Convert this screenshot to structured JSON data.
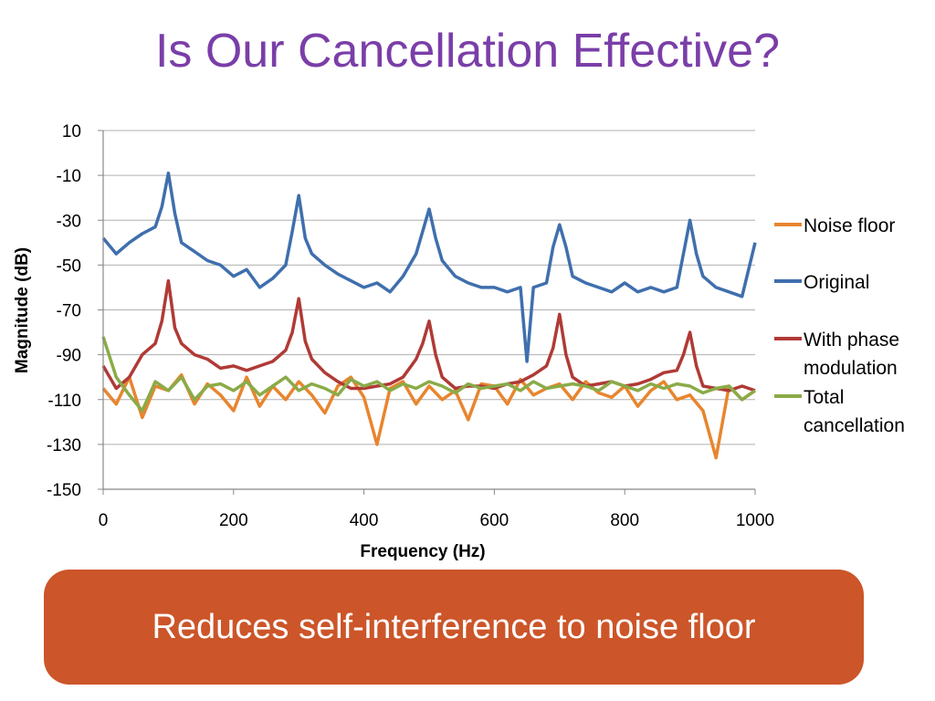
{
  "slide": {
    "title": "Is Our Cancellation Effective?",
    "callout": "Reduces self-interference to noise floor"
  },
  "colors": {
    "title": "#7a3ea8",
    "callout_bg": "#cc5529",
    "grid": "#b0b0b0"
  },
  "chart_data": {
    "type": "line",
    "title": "",
    "xlabel": "Frequency (Hz)",
    "ylabel": "Magnitude (dB)",
    "xlim": [
      0,
      1000
    ],
    "ylim": [
      -150,
      10
    ],
    "xticks": [
      0,
      200,
      400,
      600,
      800,
      1000
    ],
    "yticks": [
      10,
      -10,
      -30,
      -50,
      -70,
      -90,
      -110,
      -130,
      -150
    ],
    "grid": "horizontal",
    "legend_position": "right",
    "series": [
      {
        "name": "Noise floor",
        "color": "#e8852e",
        "x": [
          0,
          20,
          40,
          60,
          80,
          100,
          120,
          140,
          160,
          180,
          200,
          220,
          240,
          260,
          280,
          300,
          320,
          340,
          360,
          380,
          400,
          420,
          440,
          460,
          480,
          500,
          520,
          540,
          560,
          580,
          600,
          620,
          640,
          660,
          680,
          700,
          720,
          740,
          760,
          780,
          800,
          820,
          840,
          860,
          880,
          900,
          920,
          940,
          960,
          980,
          1000
        ],
        "y": [
          -105,
          -112,
          -100,
          -118,
          -104,
          -106,
          -99,
          -112,
          -103,
          -108,
          -115,
          -100,
          -113,
          -104,
          -110,
          -102,
          -108,
          -116,
          -104,
          -100,
          -109,
          -130,
          -105,
          -102,
          -112,
          -104,
          -110,
          -106,
          -119,
          -103,
          -104,
          -112,
          -101,
          -108,
          -105,
          -103,
          -110,
          -102,
          -107,
          -109,
          -104,
          -113,
          -106,
          -102,
          -110,
          -108,
          -115,
          -136,
          -104,
          -110,
          -106
        ]
      },
      {
        "name": "Original",
        "color": "#3f6fad",
        "x": [
          0,
          20,
          40,
          60,
          80,
          90,
          100,
          110,
          120,
          140,
          160,
          180,
          200,
          220,
          240,
          260,
          280,
          290,
          300,
          310,
          320,
          340,
          360,
          380,
          400,
          420,
          440,
          460,
          480,
          490,
          500,
          510,
          520,
          540,
          560,
          580,
          600,
          620,
          640,
          650,
          660,
          680,
          690,
          700,
          710,
          720,
          740,
          760,
          780,
          800,
          820,
          840,
          860,
          880,
          890,
          900,
          910,
          920,
          940,
          960,
          980,
          1000
        ],
        "y": [
          -38,
          -45,
          -40,
          -36,
          -33,
          -24,
          -9,
          -27,
          -40,
          -44,
          -48,
          -50,
          -55,
          -52,
          -60,
          -56,
          -50,
          -35,
          -19,
          -38,
          -45,
          -50,
          -54,
          -57,
          -60,
          -58,
          -62,
          -55,
          -45,
          -35,
          -25,
          -38,
          -48,
          -55,
          -58,
          -60,
          -60,
          -62,
          -60,
          -93,
          -60,
          -58,
          -42,
          -32,
          -42,
          -55,
          -58,
          -60,
          -62,
          -58,
          -62,
          -60,
          -62,
          -60,
          -45,
          -30,
          -45,
          -55,
          -60,
          -62,
          -64,
          -40
        ]
      },
      {
        "name": "With phase modulation",
        "color": "#b03a36",
        "x": [
          0,
          20,
          40,
          60,
          80,
          90,
          100,
          110,
          120,
          140,
          160,
          180,
          200,
          220,
          240,
          260,
          280,
          290,
          300,
          310,
          320,
          340,
          360,
          380,
          400,
          420,
          440,
          460,
          480,
          490,
          500,
          510,
          520,
          540,
          560,
          580,
          600,
          620,
          640,
          660,
          680,
          690,
          700,
          710,
          720,
          740,
          760,
          780,
          800,
          820,
          840,
          860,
          880,
          890,
          900,
          910,
          920,
          940,
          960,
          980,
          1000
        ],
        "y": [
          -95,
          -105,
          -100,
          -90,
          -85,
          -75,
          -57,
          -78,
          -85,
          -90,
          -92,
          -96,
          -95,
          -97,
          -95,
          -93,
          -88,
          -80,
          -65,
          -84,
          -92,
          -98,
          -102,
          -105,
          -105,
          -104,
          -103,
          -100,
          -92,
          -85,
          -75,
          -90,
          -100,
          -105,
          -104,
          -104,
          -105,
          -103,
          -102,
          -99,
          -95,
          -87,
          -72,
          -90,
          -100,
          -104,
          -103,
          -102,
          -104,
          -103,
          -101,
          -98,
          -97,
          -90,
          -80,
          -95,
          -104,
          -105,
          -106,
          -104,
          -106
        ]
      },
      {
        "name": "Total cancellation",
        "color": "#8aab48",
        "x": [
          0,
          20,
          40,
          60,
          80,
          100,
          120,
          140,
          160,
          180,
          200,
          220,
          240,
          260,
          280,
          300,
          320,
          340,
          360,
          380,
          400,
          420,
          440,
          460,
          480,
          500,
          520,
          540,
          560,
          580,
          600,
          620,
          640,
          660,
          680,
          700,
          720,
          740,
          760,
          780,
          800,
          820,
          840,
          860,
          880,
          900,
          920,
          940,
          960,
          980,
          1000
        ],
        "y": [
          -82,
          -100,
          -108,
          -115,
          -102,
          -106,
          -100,
          -110,
          -104,
          -103,
          -106,
          -102,
          -108,
          -104,
          -100,
          -106,
          -103,
          -105,
          -108,
          -101,
          -104,
          -102,
          -106,
          -103,
          -105,
          -102,
          -104,
          -107,
          -103,
          -105,
          -104,
          -103,
          -106,
          -102,
          -105,
          -104,
          -103,
          -104,
          -106,
          -102,
          -104,
          -106,
          -103,
          -105,
          -103,
          -104,
          -107,
          -105,
          -104,
          -110,
          -106
        ]
      }
    ]
  }
}
